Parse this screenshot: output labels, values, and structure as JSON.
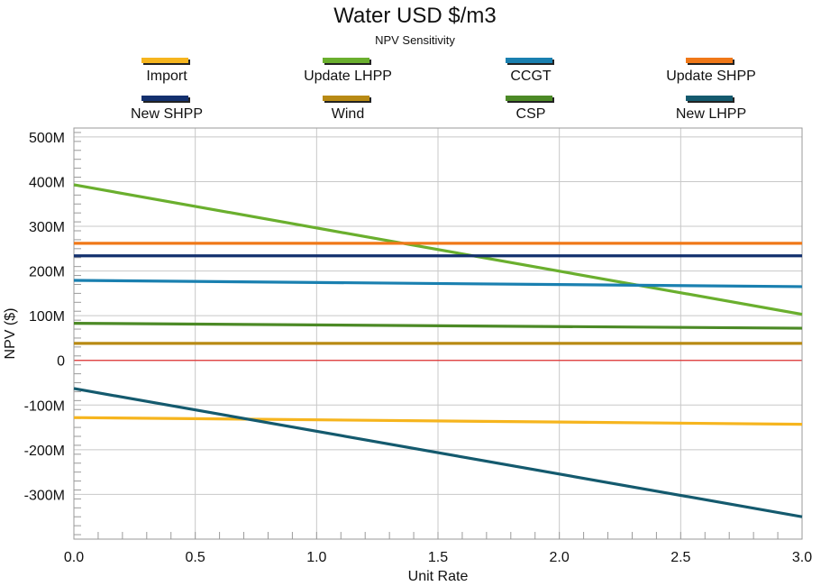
{
  "chart_data": {
    "type": "line",
    "title": "Water USD $/m3",
    "subtitle": "NPV Sensitivity",
    "xlabel": "Unit Rate",
    "ylabel": "NPV ($)",
    "xlim": [
      0.0,
      3.0
    ],
    "ylim": [
      -400,
      520
    ],
    "x_ticks": [
      "0.0",
      "0.5",
      "1.0",
      "1.5",
      "2.0",
      "2.5",
      "3.0"
    ],
    "y_ticks": [
      "500M",
      "400M",
      "300M",
      "200M",
      "100M",
      "0",
      "-100M",
      "-200M",
      "-300M"
    ],
    "y_tick_values": [
      500,
      400,
      300,
      200,
      100,
      0,
      -100,
      -200,
      -300
    ],
    "y_unit": "millions of $",
    "grid": true,
    "legend_position": "top",
    "zero_line_color": "#e03030",
    "series": [
      {
        "name": "Import",
        "color": "#f6b51e",
        "x": [
          0.0,
          3.0
        ],
        "y": [
          -128,
          -143
        ]
      },
      {
        "name": "Update LHPP",
        "color": "#6aaf2e",
        "x": [
          0.0,
          3.0
        ],
        "y": [
          393,
          103
        ]
      },
      {
        "name": "CCGT",
        "color": "#1a80b0",
        "x": [
          0.0,
          3.0
        ],
        "y": [
          179,
          165
        ]
      },
      {
        "name": "Update SHPP",
        "color": "#f07818",
        "x": [
          0.0,
          3.0
        ],
        "y": [
          262,
          262
        ]
      },
      {
        "name": "New SHPP",
        "color": "#13306e",
        "x": [
          0.0,
          3.0
        ],
        "y": [
          234,
          234
        ]
      },
      {
        "name": "Wind",
        "color": "#b88a14",
        "x": [
          0.0,
          3.0
        ],
        "y": [
          38,
          38
        ]
      },
      {
        "name": "CSP",
        "color": "#4c8a26",
        "x": [
          0.0,
          3.0
        ],
        "y": [
          83,
          72
        ]
      },
      {
        "name": "New LHPP",
        "color": "#145a6e",
        "x": [
          0.0,
          3.0
        ],
        "y": [
          -63,
          -350
        ]
      }
    ]
  }
}
